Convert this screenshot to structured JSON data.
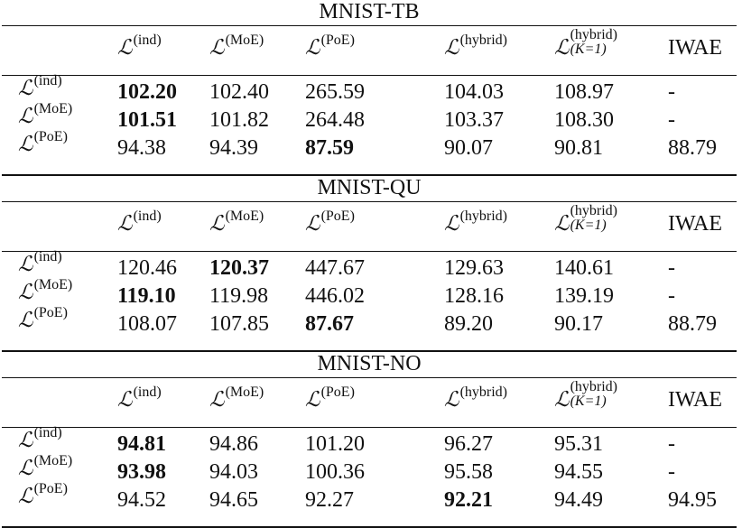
{
  "column_headers": [
    {
      "base": "L",
      "sup": "(ind)"
    },
    {
      "base": "L",
      "sup": "(MoE)"
    },
    {
      "base": "L",
      "sup": "(PoE)"
    },
    {
      "base": "L",
      "sup": "(hybrid)"
    },
    {
      "base": "L",
      "sup": "(hybrid)",
      "sub": "(K=1)"
    },
    {
      "text": "IWAE"
    }
  ],
  "row_labels": [
    {
      "base": "L",
      "sup": "(ind)"
    },
    {
      "base": "L",
      "sup": "(MoE)"
    },
    {
      "base": "L",
      "sup": "(PoE)"
    }
  ],
  "tables": [
    {
      "title": "MNIST-TB",
      "rows": [
        [
          "102.20",
          "102.40",
          "265.59",
          "104.03",
          "108.97",
          "-"
        ],
        [
          "101.51",
          "101.82",
          "264.48",
          "103.37",
          "108.30",
          "-"
        ],
        [
          "94.38",
          "94.39",
          "87.59",
          "90.07",
          "90.81",
          "88.79"
        ]
      ],
      "bold": [
        [
          true,
          false,
          false,
          false,
          false,
          false
        ],
        [
          true,
          false,
          false,
          false,
          false,
          false
        ],
        [
          false,
          false,
          true,
          false,
          false,
          false
        ]
      ]
    },
    {
      "title": "MNIST-QU",
      "rows": [
        [
          "120.46",
          "120.37",
          "447.67",
          "129.63",
          "140.61",
          "-"
        ],
        [
          "119.10",
          "119.98",
          "446.02",
          "128.16",
          "139.19",
          "-"
        ],
        [
          "108.07",
          "107.85",
          "87.67",
          "89.20",
          "90.17",
          "88.79"
        ]
      ],
      "bold": [
        [
          false,
          true,
          false,
          false,
          false,
          false
        ],
        [
          true,
          false,
          false,
          false,
          false,
          false
        ],
        [
          false,
          false,
          true,
          false,
          false,
          false
        ]
      ]
    },
    {
      "title": "MNIST-NO",
      "rows": [
        [
          "94.81",
          "94.86",
          "101.20",
          "96.27",
          "95.31",
          "-"
        ],
        [
          "93.98",
          "94.03",
          "100.36",
          "95.58",
          "94.55",
          "-"
        ],
        [
          "94.52",
          "94.65",
          "92.27",
          "92.21",
          "94.49",
          "94.95"
        ]
      ],
      "bold": [
        [
          true,
          false,
          false,
          false,
          false,
          false
        ],
        [
          true,
          false,
          false,
          false,
          false,
          false
        ],
        [
          false,
          false,
          false,
          true,
          false,
          false
        ]
      ]
    }
  ]
}
